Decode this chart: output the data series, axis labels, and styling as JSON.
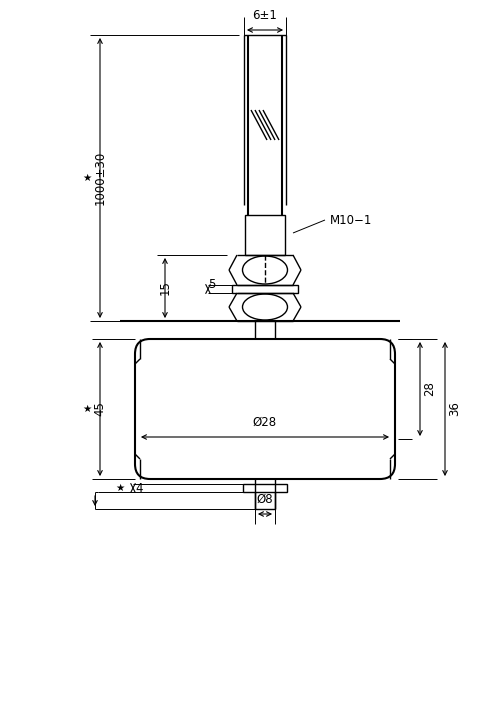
{
  "bg_color": "#ffffff",
  "line_color": "#000000",
  "fig_width": 5.0,
  "fig_height": 7.23,
  "dpi": 100,
  "labels": {
    "cable_width": "6±1",
    "cable_length": "1000±30",
    "thread": "M10−1",
    "dim_15": "15",
    "dim_5": "5",
    "dim_45": "45",
    "dim_4": "4",
    "dim_28_h": "Ø28",
    "dim_28_v": "28",
    "dim_36": "36",
    "dim_8": "Ø8"
  }
}
